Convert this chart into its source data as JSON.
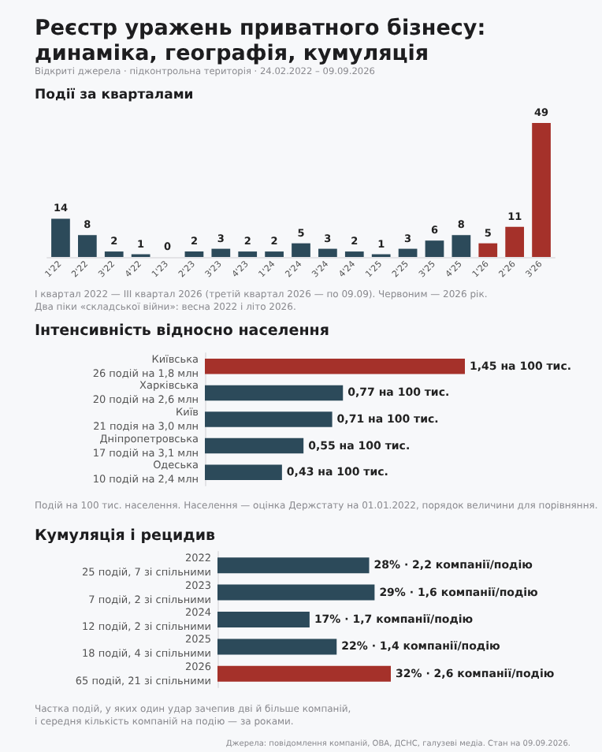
{
  "chart_data": [
    {
      "type": "bar",
      "title": "Реєстр уражень приватного бізнесу:\nдинаміка, географія, кумуляція",
      "subtitle": "Відкриті джерела · підконтрольна територія · 24.02.2022 – 09.09.2026",
      "annotations": [
        "Події за кварталами",
        "I квартал 2022 — III квартал 2026 (третій квартал 2026 — по 09.09). Червоним — 2026 рік.\nДва піки «складської війни»: весна 2022 і літо 2026."
      ],
      "categories": [
        "1'22",
        "2'22",
        "3'22",
        "4'22",
        "1'23",
        "2'23",
        "3'23",
        "4'23",
        "1'24",
        "2'24",
        "3'24",
        "4'24",
        "1'25",
        "2'25",
        "3'25",
        "4'25",
        "1'26",
        "2'26",
        "3'26"
      ],
      "values": [
        14,
        8,
        2,
        1,
        0,
        2,
        3,
        2,
        2,
        5,
        3,
        2,
        1,
        3,
        6,
        8,
        5,
        11,
        49
      ],
      "colors": [
        "#2c4a5a",
        "#2c4a5a",
        "#2c4a5a",
        "#2c4a5a",
        "#2c4a5a",
        "#2c4a5a",
        "#2c4a5a",
        "#2c4a5a",
        "#2c4a5a",
        "#2c4a5a",
        "#2c4a5a",
        "#2c4a5a",
        "#2c4a5a",
        "#2c4a5a",
        "#2c4a5a",
        "#2c4a5a",
        "#a5312a",
        "#a5312a",
        "#a5312a"
      ],
      "data_labels": true,
      "tick_labels": "x"
    },
    {
      "type": "bar",
      "orientation": "horizontal",
      "title": "Інтенсивність відносно населення",
      "annotations": [
        "Подій на 100 тис. населення. Населення — оцінка Держстату на 01.01.2022, порядок величини для порівняння."
      ],
      "categories": [
        "Київська\n26 подій на 1,8 млн",
        "Харківська\n20 подій на 2,6 млн",
        "Київ\n21 подія на 3,0 млн",
        "Дніпропетровська\n17 подій на 3,1 млн",
        "Одеська\n10 подій на 2,4 млн"
      ],
      "values": [
        1.45,
        0.77,
        0.71,
        0.55,
        0.43
      ],
      "value_labels": [
        "1,45 на 100 тис.",
        "0,77 на 100 тис.",
        "0,71 на 100 тис.",
        "0,55 на 100 тис.",
        "0,43 на 100 тис."
      ],
      "colors": [
        "#a5312a",
        "#2c4a5a",
        "#2c4a5a",
        "#2c4a5a",
        "#2c4a5a"
      ],
      "tick_labels": "y"
    },
    {
      "type": "bar",
      "orientation": "horizontal",
      "title": "Кумуляція і рецидив",
      "annotations": [
        "Частка подій, у яких один удар зачепив дві й більше компаній,\nі середня кількість компаній на подію — за роками.",
        "Джерела: повідомлення компаній, ОВА, ДСНС, галузеві медіа. Стан на 09.09.2026."
      ],
      "categories": [
        "2022\n25 подій, 7 зі спільними",
        "2023\n7 подій, 2 зі спільними",
        "2024\n12 подій, 2 зі спільними",
        "2025\n18 подій, 4 зі спільними",
        "2026\n65 подій, 21 зі спільними"
      ],
      "values": [
        28,
        29,
        17,
        22,
        32
      ],
      "value_labels": [
        "28% · 2,2 компанії/подію",
        "29% · 1,6 компанії/подію",
        "17% · 1,7 компанії/подію",
        "22% · 1,4 компанії/подію",
        "32% · 2,6 компанії/подію"
      ],
      "colors": [
        "#2c4a5a",
        "#2c4a5a",
        "#2c4a5a",
        "#2c4a5a",
        "#a5312a"
      ],
      "tick_labels": "y"
    }
  ]
}
